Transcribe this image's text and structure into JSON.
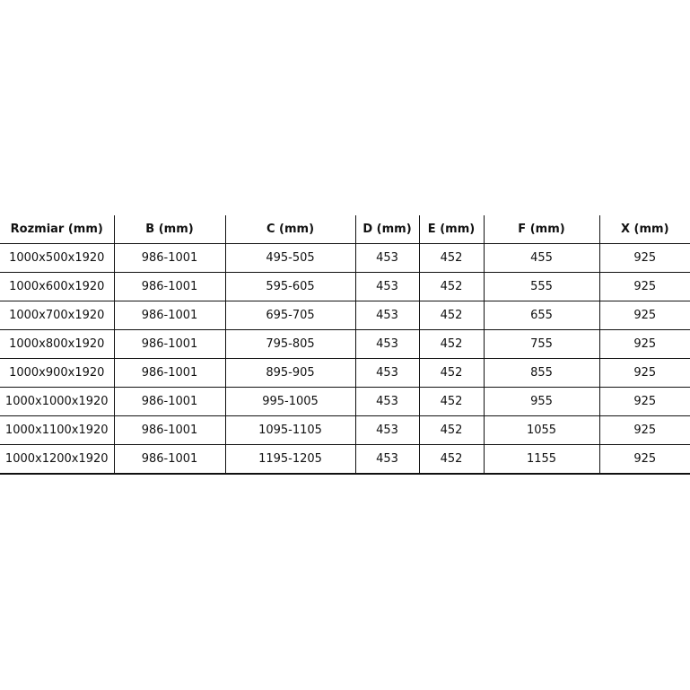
{
  "table": {
    "headers": [
      "Rozmiar (mm)",
      "B (mm)",
      "C (mm)",
      "D (mm)",
      "E (mm)",
      "F (mm)",
      "X (mm)"
    ],
    "rows": [
      [
        "1000x500x1920",
        "986-1001",
        "495-505",
        "453",
        "452",
        "455",
        "925"
      ],
      [
        "1000x600x1920",
        "986-1001",
        "595-605",
        "453",
        "452",
        "555",
        "925"
      ],
      [
        "1000x700x1920",
        "986-1001",
        "695-705",
        "453",
        "452",
        "655",
        "925"
      ],
      [
        "1000x800x1920",
        "986-1001",
        "795-805",
        "453",
        "452",
        "755",
        "925"
      ],
      [
        "1000x900x1920",
        "986-1001",
        "895-905",
        "453",
        "452",
        "855",
        "925"
      ],
      [
        "1000x1000x1920",
        "986-1001",
        "995-1005",
        "453",
        "452",
        "955",
        "925"
      ],
      [
        "1000x1100x1920",
        "986-1001",
        "1095-1105",
        "453",
        "452",
        "1055",
        "925"
      ],
      [
        "1000x1200x1920",
        "986-1001",
        "1195-1205",
        "453",
        "452",
        "1155",
        "925"
      ]
    ]
  }
}
